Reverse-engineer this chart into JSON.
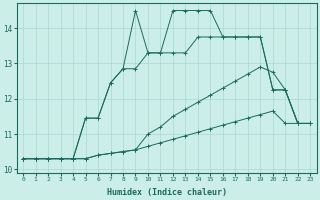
{
  "xlabel": "Humidex (Indice chaleur)",
  "bg_color": "#cceee8",
  "line_color": "#1a6b5e",
  "grid_color": "#aad8d0",
  "xlim": [
    -0.5,
    23.5
  ],
  "ylim": [
    9.9,
    14.7
  ],
  "yticks": [
    10,
    11,
    12,
    13,
    14
  ],
  "xticks": [
    0,
    1,
    2,
    3,
    4,
    5,
    6,
    7,
    8,
    9,
    10,
    11,
    12,
    13,
    14,
    15,
    16,
    17,
    18,
    19,
    20,
    21,
    22,
    23
  ],
  "lines": [
    {
      "x": [
        0,
        1,
        2,
        3,
        4,
        5,
        6,
        7,
        8,
        9,
        10,
        11,
        12,
        13,
        14,
        15,
        16,
        17,
        18,
        19,
        20,
        21,
        22,
        23
      ],
      "y": [
        10.3,
        10.3,
        10.3,
        10.3,
        10.3,
        10.3,
        10.4,
        10.45,
        10.5,
        10.55,
        10.65,
        10.75,
        10.85,
        10.95,
        11.05,
        11.15,
        11.25,
        11.35,
        11.45,
        11.55,
        11.65,
        11.3,
        11.3,
        11.3
      ]
    },
    {
      "x": [
        0,
        1,
        2,
        3,
        4,
        5,
        6,
        7,
        8,
        9,
        10,
        11,
        12,
        13,
        14,
        15,
        16,
        17,
        18,
        19,
        20,
        21,
        22,
        23
      ],
      "y": [
        10.3,
        10.3,
        10.3,
        10.3,
        10.3,
        10.3,
        10.4,
        10.45,
        10.5,
        10.55,
        11.0,
        11.2,
        11.5,
        11.7,
        11.9,
        12.1,
        12.3,
        12.5,
        12.7,
        12.9,
        12.75,
        12.25,
        11.3,
        11.3
      ]
    },
    {
      "x": [
        0,
        1,
        2,
        3,
        4,
        5,
        6,
        7,
        8,
        9,
        10,
        11,
        12,
        13,
        14,
        15,
        16,
        17,
        18,
        19,
        20,
        21,
        22,
        23
      ],
      "y": [
        10.3,
        10.3,
        10.3,
        10.3,
        10.3,
        11.45,
        11.45,
        12.45,
        12.85,
        12.85,
        13.3,
        13.3,
        13.3,
        13.3,
        13.75,
        13.75,
        13.75,
        13.75,
        13.75,
        13.75,
        12.25,
        12.25,
        11.3,
        11.3
      ]
    },
    {
      "x": [
        0,
        1,
        2,
        3,
        4,
        5,
        6,
        7,
        8,
        9,
        10,
        11,
        12,
        13,
        14,
        15,
        16,
        17,
        18,
        19,
        20,
        21,
        22,
        23
      ],
      "y": [
        10.3,
        10.3,
        10.3,
        10.3,
        10.3,
        11.45,
        11.45,
        12.45,
        12.85,
        14.5,
        13.3,
        13.3,
        14.5,
        14.5,
        14.5,
        14.5,
        13.75,
        13.75,
        13.75,
        13.75,
        12.25,
        12.25,
        11.3,
        11.3
      ]
    }
  ]
}
